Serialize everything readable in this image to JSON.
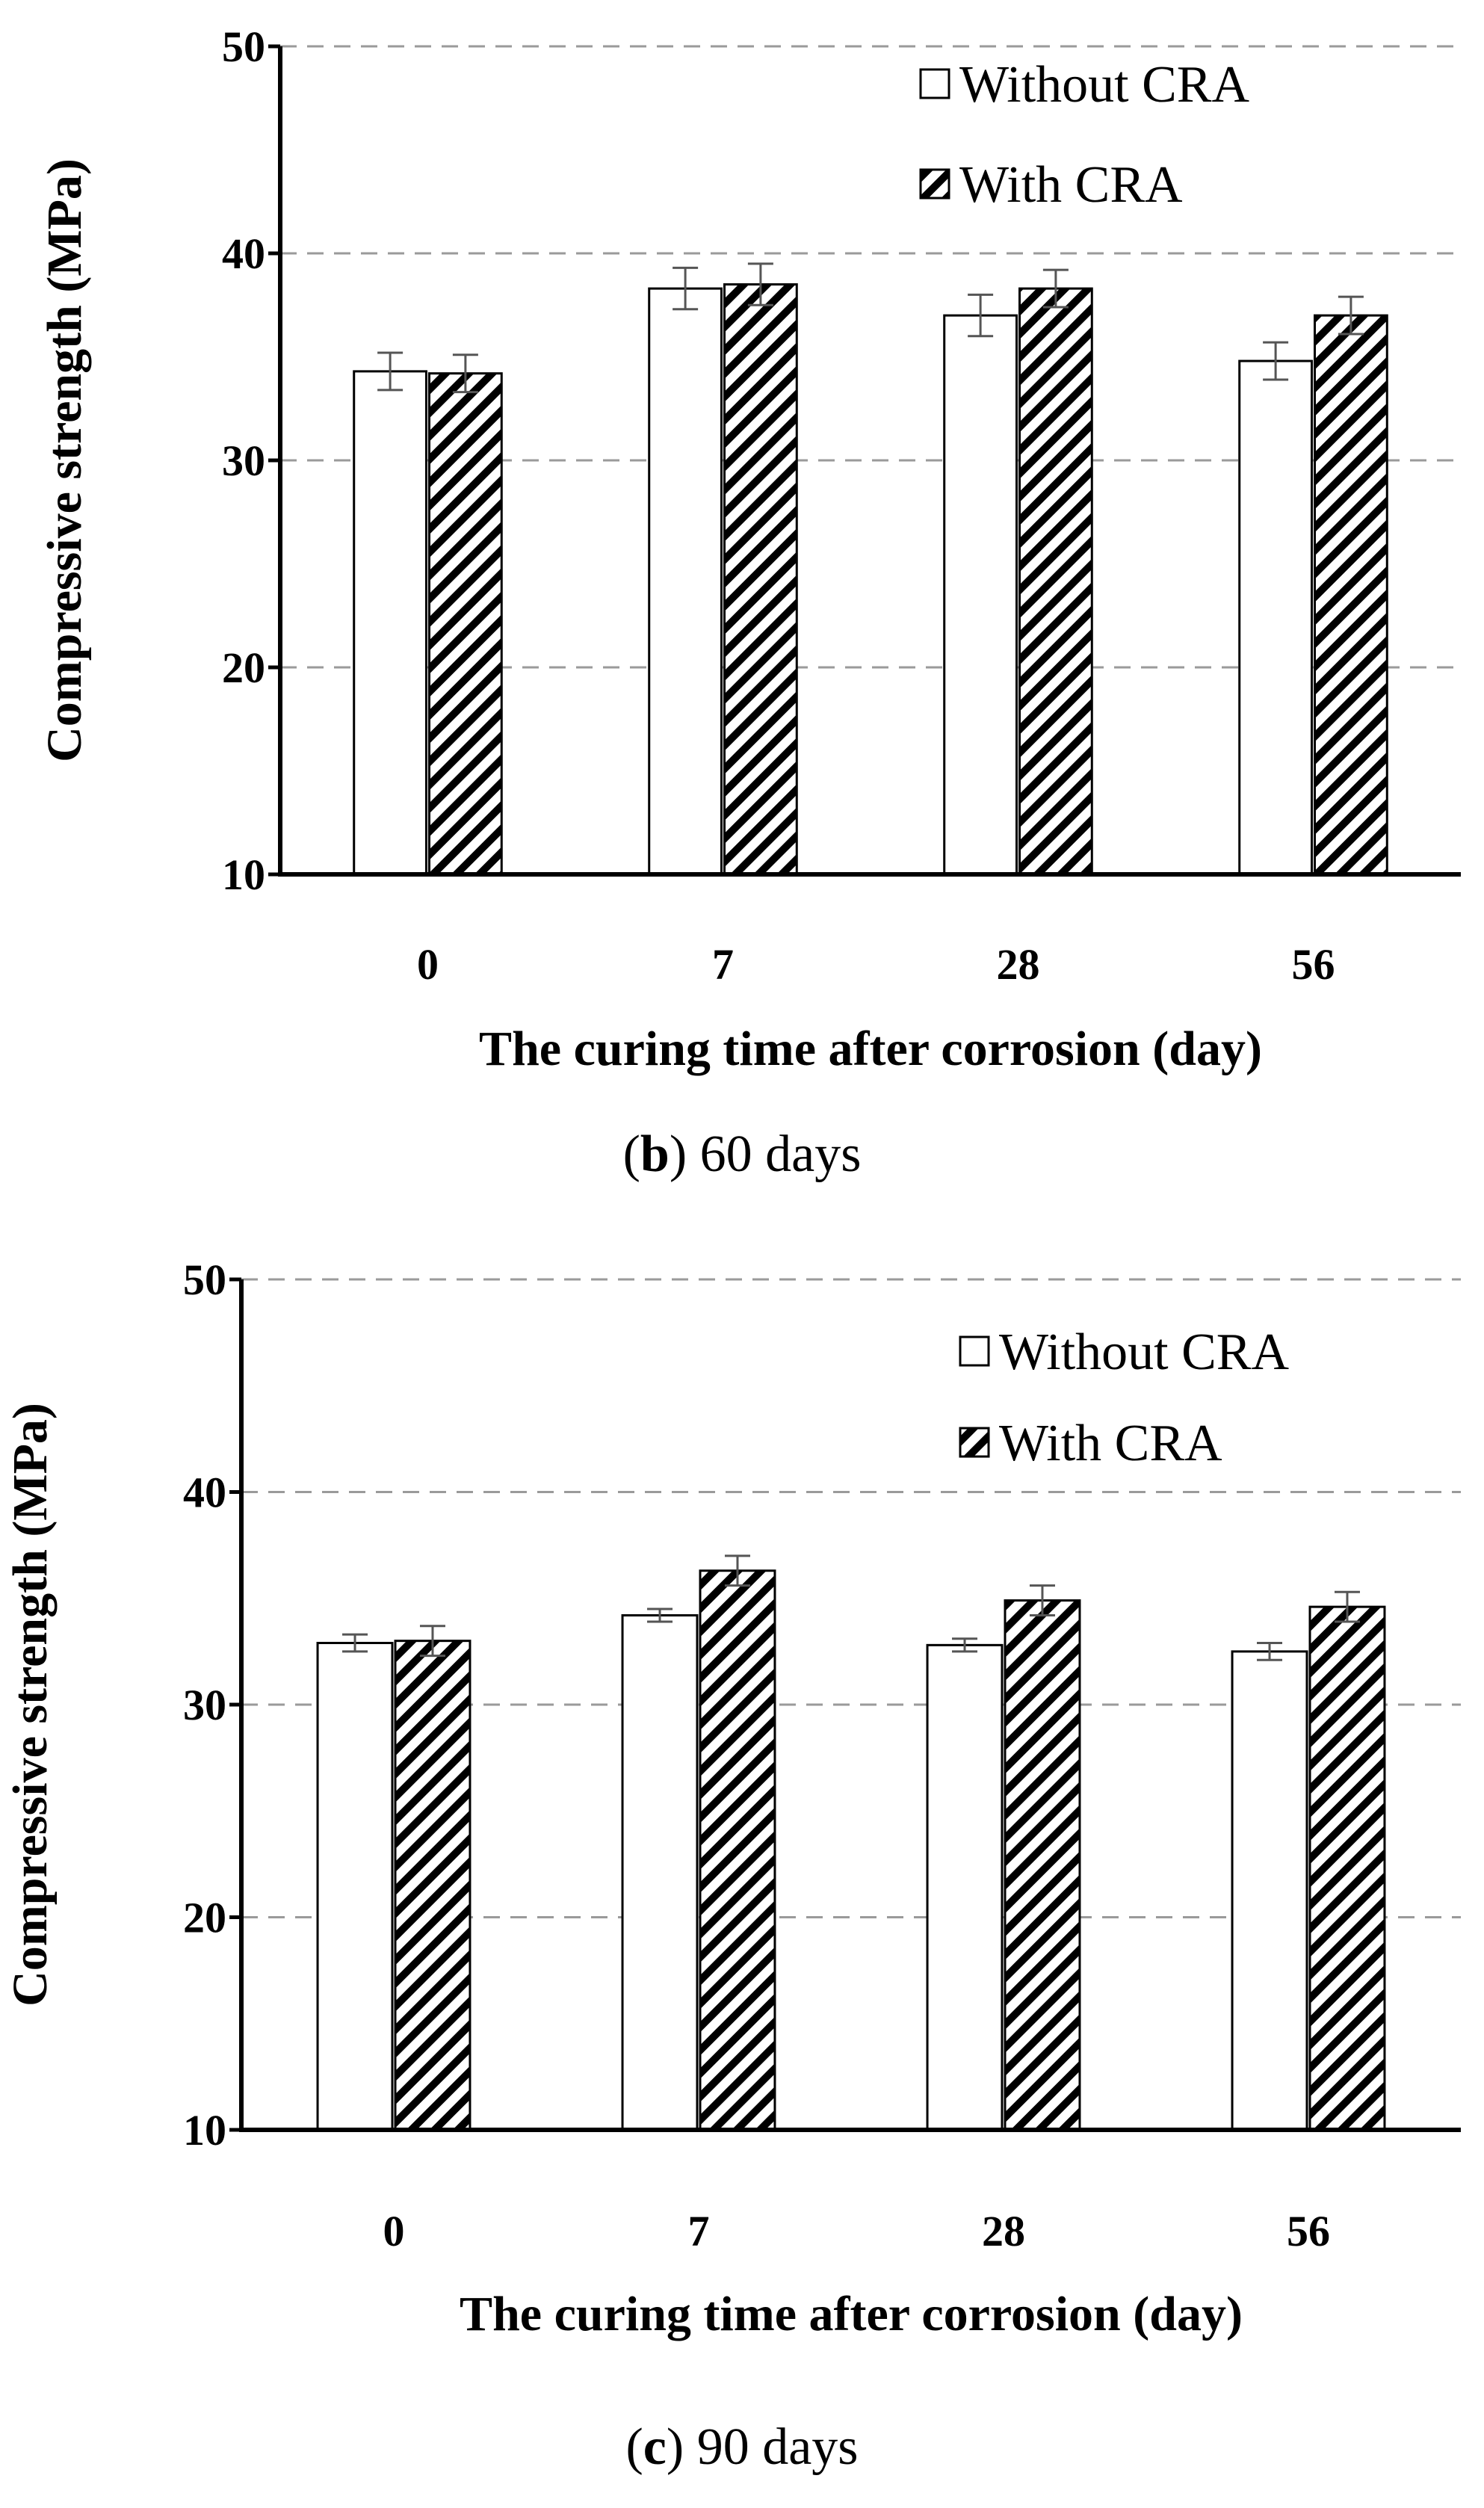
{
  "chart_data": [
    {
      "type": "bar",
      "panel_letter": "b",
      "panel_label": "60 days",
      "categories": [
        "0",
        "7",
        "28",
        "56"
      ],
      "series": [
        {
          "name": "Without CRA",
          "pattern": "none",
          "values": [
            34.3,
            38.3,
            37.0,
            34.8
          ],
          "errors": [
            0.9,
            1.0,
            1.0,
            0.9
          ]
        },
        {
          "name": "With CRA",
          "pattern": "hatched",
          "values": [
            34.2,
            38.5,
            38.3,
            37.0
          ],
          "errors": [
            0.9,
            1.0,
            0.9,
            0.9
          ]
        }
      ],
      "xlabel": "The curing time after corrosion (day)",
      "ylabel": "Compressive strength (MPa)",
      "ylim": [
        10,
        50
      ],
      "yticks": [
        10,
        20,
        30,
        40,
        50
      ],
      "grid": "horizontal dashed",
      "legend": "top-right"
    },
    {
      "type": "bar",
      "panel_letter": "c",
      "panel_label": "90 days",
      "categories": [
        "0",
        "7",
        "28",
        "56"
      ],
      "series": [
        {
          "name": "Without CRA",
          "pattern": "none",
          "values": [
            32.9,
            34.2,
            32.8,
            32.5
          ],
          "errors": [
            0.4,
            0.3,
            0.3,
            0.4
          ]
        },
        {
          "name": "With CRA",
          "pattern": "hatched",
          "values": [
            33.0,
            36.3,
            34.9,
            34.6
          ],
          "errors": [
            0.7,
            0.7,
            0.7,
            0.7
          ]
        }
      ],
      "xlabel": "The curing time after corrosion (day)",
      "ylabel": "Compressive strength (MPa)",
      "ylim": [
        10,
        50
      ],
      "yticks": [
        10,
        20,
        30,
        40,
        50
      ],
      "grid": "horizontal dashed",
      "legend": "top-right"
    }
  ],
  "colors": {
    "axis": "#000000",
    "grid": "#9a9a9a",
    "bar_fill": "#ffffff",
    "hatch": "#000000",
    "error_bar": "#555555"
  }
}
